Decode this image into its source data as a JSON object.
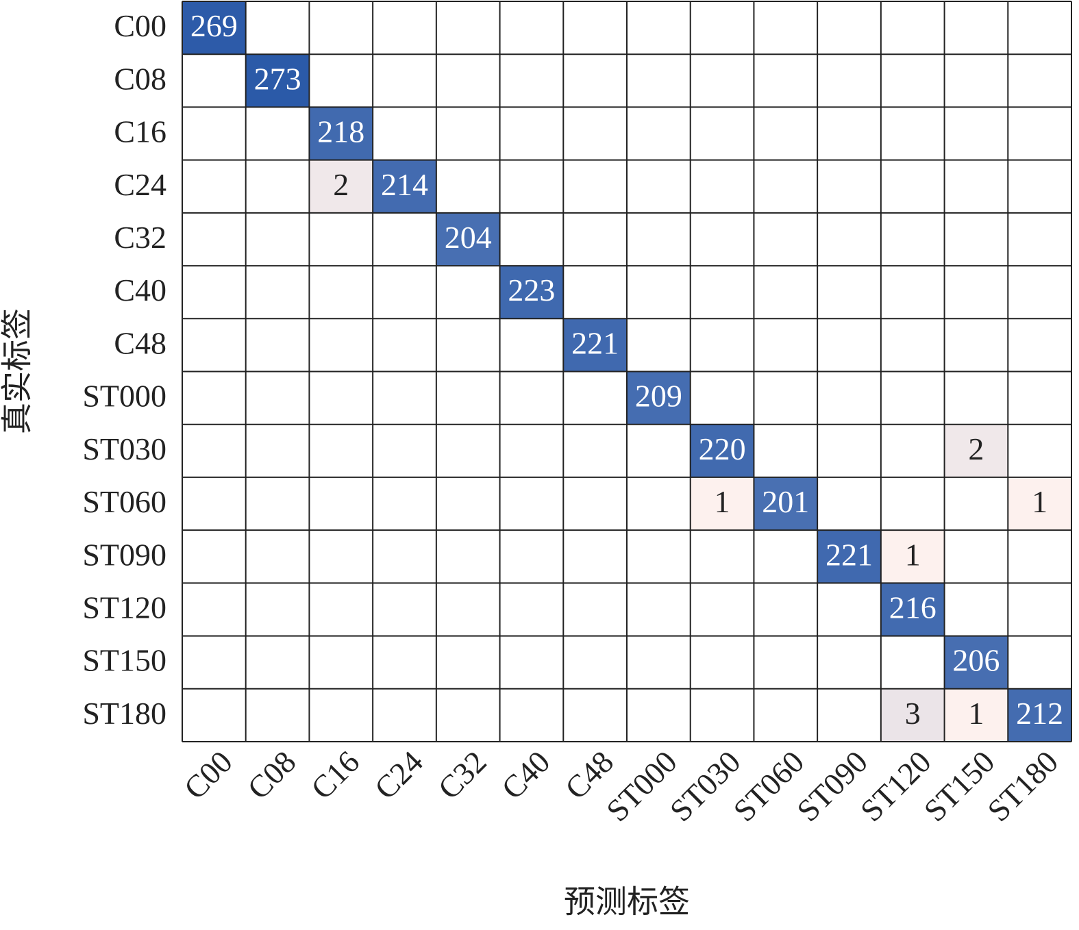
{
  "chart_data": {
    "type": "heatmap",
    "x_label": "预测标签",
    "y_label": "真实标签",
    "x_categories": [
      "C00",
      "C08",
      "C16",
      "C24",
      "C32",
      "C40",
      "C48",
      "ST000",
      "ST030",
      "ST060",
      "ST090",
      "ST120",
      "ST150",
      "ST180"
    ],
    "y_categories": [
      "C00",
      "C08",
      "C16",
      "C24",
      "C32",
      "C40",
      "C48",
      "ST000",
      "ST030",
      "ST060",
      "ST090",
      "ST120",
      "ST150",
      "ST180"
    ],
    "values": [
      [
        269,
        null,
        null,
        null,
        null,
        null,
        null,
        null,
        null,
        null,
        null,
        null,
        null,
        null
      ],
      [
        null,
        273,
        null,
        null,
        null,
        null,
        null,
        null,
        null,
        null,
        null,
        null,
        null,
        null
      ],
      [
        null,
        null,
        218,
        null,
        null,
        null,
        null,
        null,
        null,
        null,
        null,
        null,
        null,
        null
      ],
      [
        null,
        null,
        2,
        214,
        null,
        null,
        null,
        null,
        null,
        null,
        null,
        null,
        null,
        null
      ],
      [
        null,
        null,
        null,
        null,
        204,
        null,
        null,
        null,
        null,
        null,
        null,
        null,
        null,
        null
      ],
      [
        null,
        null,
        null,
        null,
        null,
        223,
        null,
        null,
        null,
        null,
        null,
        null,
        null,
        null
      ],
      [
        null,
        null,
        null,
        null,
        null,
        null,
        221,
        null,
        null,
        null,
        null,
        null,
        null,
        null
      ],
      [
        null,
        null,
        null,
        null,
        null,
        null,
        null,
        209,
        null,
        null,
        null,
        null,
        null,
        null
      ],
      [
        null,
        null,
        null,
        null,
        null,
        null,
        null,
        null,
        220,
        null,
        null,
        null,
        2,
        null
      ],
      [
        null,
        null,
        null,
        null,
        null,
        null,
        null,
        null,
        1,
        201,
        null,
        null,
        null,
        1
      ],
      [
        null,
        null,
        null,
        null,
        null,
        null,
        null,
        null,
        null,
        null,
        221,
        1,
        null,
        null
      ],
      [
        null,
        null,
        null,
        null,
        null,
        null,
        null,
        null,
        null,
        null,
        null,
        216,
        null,
        null
      ],
      [
        null,
        null,
        null,
        null,
        null,
        null,
        null,
        null,
        null,
        null,
        null,
        null,
        206,
        null
      ],
      [
        null,
        null,
        null,
        null,
        null,
        null,
        null,
        null,
        null,
        null,
        null,
        3,
        1,
        212
      ]
    ],
    "colors": {
      "low": "#fdf1ee",
      "high": "#2b5aa8"
    }
  }
}
